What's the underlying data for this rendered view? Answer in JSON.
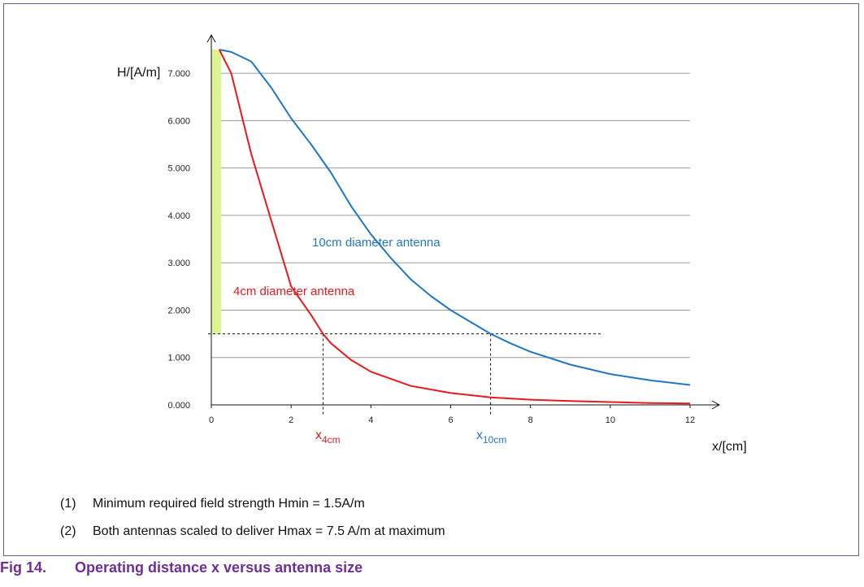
{
  "chart_data": {
    "type": "line",
    "xlabel": "x/[cm]",
    "ylabel": "H/[A/m]",
    "xlim": [
      0,
      12
    ],
    "ylim": [
      0,
      7.5
    ],
    "x_ticks": [
      "0",
      "2",
      "4",
      "6",
      "8",
      "10",
      "12"
    ],
    "y_ticks": [
      "0.000",
      "1.000",
      "2.000",
      "3.000",
      "4.000",
      "5.000",
      "6.000",
      "7.000"
    ],
    "grid": "horizontal",
    "series": [
      {
        "name": "10cm diameter antenna",
        "color": "#1f77c4",
        "x": [
          0.2,
          0.5,
          1,
          1.5,
          2,
          2.5,
          3,
          3.5,
          4,
          4.5,
          5,
          5.5,
          6,
          6.5,
          7,
          7.5,
          8,
          9,
          10,
          11,
          12
        ],
        "y": [
          7.5,
          7.45,
          7.25,
          6.7,
          6.05,
          5.5,
          4.9,
          4.2,
          3.6,
          3.1,
          2.65,
          2.3,
          2.0,
          1.75,
          1.5,
          1.3,
          1.12,
          0.85,
          0.65,
          0.52,
          0.42
        ]
      },
      {
        "name": "4cm diameter antenna",
        "color": "#e8191f",
        "x": [
          0.2,
          0.5,
          1,
          1.5,
          2,
          2.5,
          2.8,
          3,
          3.5,
          4,
          5,
          6,
          7,
          8,
          9,
          10,
          11,
          12
        ],
        "y": [
          7.5,
          7.0,
          5.3,
          3.9,
          2.5,
          1.9,
          1.5,
          1.3,
          0.95,
          0.7,
          0.4,
          0.25,
          0.16,
          0.11,
          0.08,
          0.06,
          0.04,
          0.03
        ]
      }
    ],
    "threshold": {
      "y": 1.5,
      "x_end": 9.8
    },
    "markers": [
      {
        "label_main": "x",
        "label_sub": "4cm",
        "x": 2.8,
        "color": "#e8191f"
      },
      {
        "label_main": "x",
        "label_sub": "10cm",
        "x": 7.0,
        "color": "#1f77c4"
      }
    ],
    "highlight_band": {
      "x0": 0.0,
      "x1": 0.25,
      "y0": 1.5,
      "y1": 7.5,
      "color": "#dff291"
    }
  },
  "notes": [
    {
      "num": "(1)",
      "text": "Minimum required field strength Hmin = 1.5A/m"
    },
    {
      "num": "(2)",
      "text": "Both antennas scaled to deliver Hmax = 7.5 A/m at maximum"
    }
  ],
  "caption": {
    "num": "Fig 14.",
    "text": "Operating distance x versus antenna size"
  }
}
